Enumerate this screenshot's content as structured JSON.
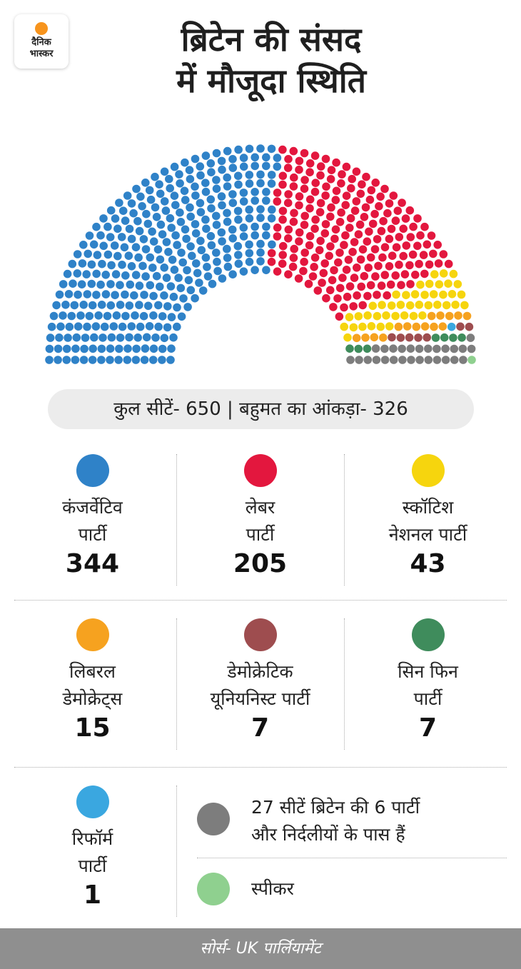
{
  "brand": {
    "line1": "दैनिक",
    "line2": "भास्कर"
  },
  "title": {
    "line1": "ब्रिटेन की संसद",
    "line2": "में मौजूदा स्थिति"
  },
  "summary": "कुल सीटें- 650 | बहुमत का आंकड़ा- 326",
  "colors": {
    "conservative": "#2f82c8",
    "labour": "#e3173e",
    "snp": "#f6d50e",
    "libdem": "#f6a21f",
    "dup": "#9e4d4f",
    "sinnfein": "#3f8c5c",
    "reform": "#3aa7e0",
    "others": "#7d7d7d",
    "speaker": "#8fd08f"
  },
  "chart_data": {
    "type": "parliament",
    "title": "ब्रिटेन की संसद में मौजूदा स्थिति",
    "total_seats": 650,
    "majority": 326,
    "series": [
      {
        "key": "conservative",
        "name": "कंजर्वेटिव पार्टी",
        "seats": 344,
        "color": "#2f82c8"
      },
      {
        "key": "labour",
        "name": "लेबर पार्टी",
        "seats": 205,
        "color": "#e3173e"
      },
      {
        "key": "snp",
        "name": "स्कॉटिश नेशनल पार्टी",
        "seats": 43,
        "color": "#f6d50e"
      },
      {
        "key": "libdem",
        "name": "लिबरल डेमोक्रेट्स",
        "seats": 15,
        "color": "#f6a21f"
      },
      {
        "key": "reform",
        "name": "रिफॉर्म पार्टी",
        "seats": 1,
        "color": "#3aa7e0"
      },
      {
        "key": "dup",
        "name": "डेमोक्रेटिक यूनियनिस्ट पार्टी",
        "seats": 7,
        "color": "#9e4d4f"
      },
      {
        "key": "sinnfein",
        "name": "सिन फिन पार्टी",
        "seats": 7,
        "color": "#3f8c5c"
      },
      {
        "key": "others",
        "name": "27 सीटें ब्रिटेन की 6 पार्टी और निर्दलीयों के पास हैं",
        "seats": 27,
        "color": "#7d7d7d"
      },
      {
        "key": "speaker",
        "name": "स्पीकर",
        "seats": 1,
        "color": "#8fd08f"
      }
    ]
  },
  "parties": [
    {
      "key": "conservative",
      "line1": "कंजर्वेटिव",
      "line2": "पार्टी",
      "seats": "344"
    },
    {
      "key": "labour",
      "line1": "लेबर",
      "line2": "पार्टी",
      "seats": "205"
    },
    {
      "key": "snp",
      "line1": "स्कॉटिश",
      "line2": "नेशनल पार्टी",
      "seats": "43"
    },
    {
      "key": "libdem",
      "line1": "लिबरल",
      "line2": "डेमोक्रेट्स",
      "seats": "15"
    },
    {
      "key": "dup",
      "line1": "डेमोक्रेटिक",
      "line2": "यूनियनिस्ट पार्टी",
      "seats": "7"
    },
    {
      "key": "sinnfein",
      "line1": "सिन फिन",
      "line2": "पार्टी",
      "seats": "7"
    },
    {
      "key": "reform",
      "line1": "रिफॉर्म",
      "line2": "पार्टी",
      "seats": "1"
    }
  ],
  "others": {
    "line1": "27 सीटें ब्रिटेन की 6 पार्टी",
    "line2": "और निर्दलीयों के पास हैं"
  },
  "speaker": "स्पीकर",
  "source": "सोर्स- UK पार्लियामेंट"
}
